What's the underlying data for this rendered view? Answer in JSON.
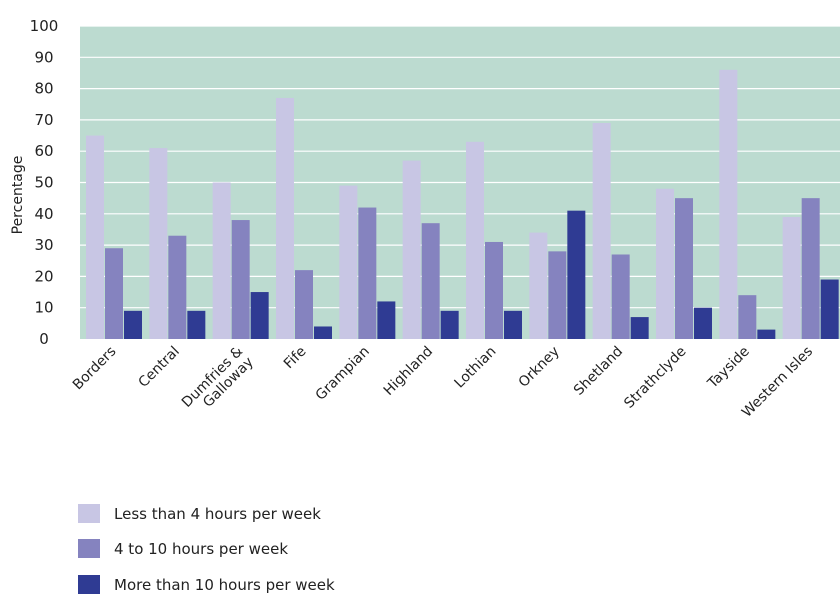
{
  "chart_data": {
    "type": "bar",
    "ylabel": "Percentage",
    "ylim": [
      0,
      100
    ],
    "yticks": [
      0,
      10,
      20,
      30,
      40,
      50,
      60,
      70,
      80,
      90,
      100
    ],
    "grid": true,
    "legend_position": "bottom-left",
    "background_color": "#bcdbd0",
    "categories": [
      "Borders",
      "Central",
      "Dumfries & Galloway",
      "Fife",
      "Grampian",
      "Highland",
      "Lothian",
      "Orkney",
      "Shetland",
      "Strathclyde",
      "Tayside",
      "Western Isles"
    ],
    "category_lines": [
      [
        "Borders"
      ],
      [
        "Central"
      ],
      [
        "Dumfries &",
        "Galloway"
      ],
      [
        "Fife"
      ],
      [
        "Grampian"
      ],
      [
        "Highland"
      ],
      [
        "Lothian"
      ],
      [
        "Orkney"
      ],
      [
        "Shetland"
      ],
      [
        "Strathclyde"
      ],
      [
        "Tayside"
      ],
      [
        "Western Isles"
      ]
    ],
    "series": [
      {
        "name": "Less than 4 hours per week",
        "color": "#c8c6e4",
        "values": [
          65,
          61,
          50,
          77,
          49,
          57,
          63,
          34,
          69,
          48,
          86,
          39
        ]
      },
      {
        "name": "4 to 10 hours per week",
        "color": "#8583bf",
        "values": [
          29,
          33,
          38,
          22,
          42,
          37,
          31,
          28,
          27,
          45,
          14,
          45
        ]
      },
      {
        "name": "More than 10 hours per week",
        "color": "#2f3b93",
        "values": [
          9,
          9,
          15,
          4,
          12,
          9,
          9,
          41,
          7,
          10,
          3,
          19
        ]
      }
    ]
  }
}
